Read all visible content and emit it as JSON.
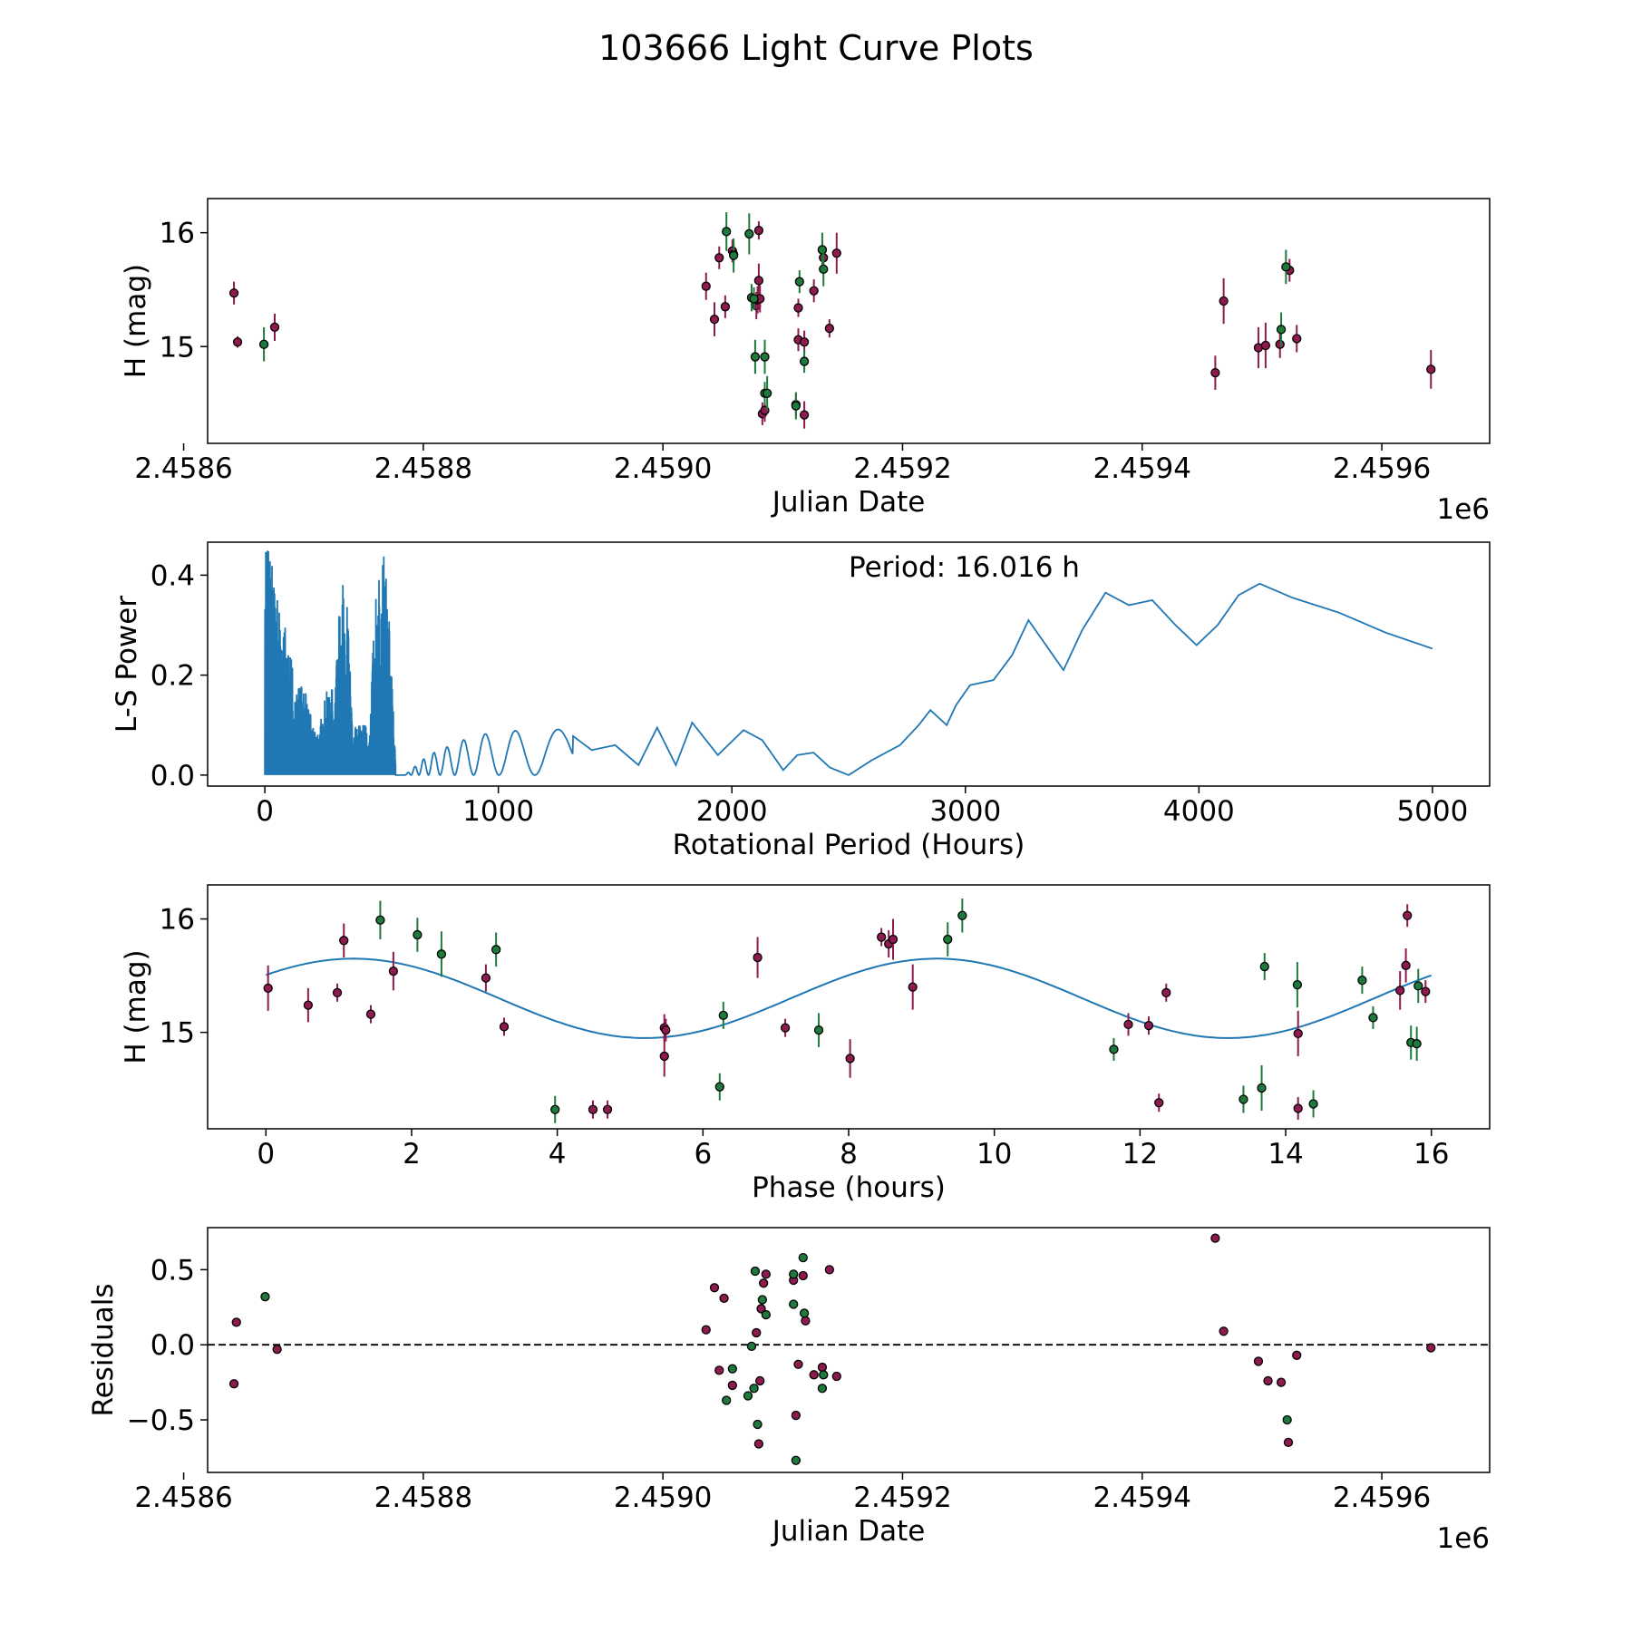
{
  "figure_title": "103666 Light Curve Plots",
  "colors": {
    "g_filter": "#1e7a3c",
    "o_filter": "#8e1a4f",
    "curve": "#1f77b4",
    "marker_edge": "#000000",
    "zero_line": "#000000"
  },
  "chart_data": [
    {
      "id": "raw",
      "type": "scatter",
      "xlabel": "Julian Date",
      "ylabel": "H (mag)",
      "offset_label": "1e6",
      "xlim": [
        2.45862,
        2.45969
      ],
      "ylim": [
        14.15,
        16.3
      ],
      "y_inverted_labels": false,
      "xticks": [
        2.4586,
        2.4588,
        2.459,
        2.4592,
        2.4594,
        2.4596
      ],
      "xtick_labels": [
        "2.4586",
        "2.4588",
        "2.4590",
        "2.4592",
        "2.4594",
        "2.4596"
      ],
      "yticks": [
        15,
        16
      ],
      "ytick_labels": [
        "15",
        "16"
      ],
      "series": [
        {
          "name": "o",
          "color": "o_filter",
          "points": [
            [
              2.458642,
              15.47,
              0.1
            ],
            [
              2.458645,
              15.04,
              0.05
            ],
            [
              2.458676,
              15.17,
              0.12
            ],
            [
              2.459036,
              15.53,
              0.12
            ],
            [
              2.459043,
              15.24,
              0.15
            ],
            [
              2.459047,
              15.78,
              0.1
            ],
            [
              2.459052,
              15.35,
              0.1
            ],
            [
              2.459058,
              15.84,
              0.1
            ],
            [
              2.459059,
              15.81,
              0.1
            ],
            [
              2.459078,
              15.36,
              0.12
            ],
            [
              2.459079,
              15.41,
              0.12
            ],
            [
              2.45908,
              16.02,
              0.08
            ],
            [
              2.45908,
              15.58,
              0.15
            ],
            [
              2.459081,
              15.42,
              0.12
            ],
            [
              2.459083,
              14.41,
              0.1
            ],
            [
              2.459085,
              14.44,
              0.1
            ],
            [
              2.459111,
              14.49,
              0.1
            ],
            [
              2.459113,
              15.34,
              0.08
            ],
            [
              2.459113,
              15.06,
              0.1
            ],
            [
              2.459118,
              14.4,
              0.12
            ],
            [
              2.459118,
              15.04,
              0.1
            ],
            [
              2.459126,
              15.49,
              0.1
            ],
            [
              2.459133,
              15.85,
              0.08
            ],
            [
              2.459134,
              15.78,
              0.08
            ],
            [
              2.459139,
              15.16,
              0.08
            ],
            [
              2.459145,
              15.82,
              0.18
            ],
            [
              2.459461,
              14.77,
              0.15
            ],
            [
              2.459468,
              15.4,
              0.2
            ],
            [
              2.459497,
              14.99,
              0.18
            ],
            [
              2.459503,
              15.01,
              0.2
            ],
            [
              2.459515,
              15.02,
              0.12
            ],
            [
              2.459523,
              15.67,
              0.1
            ],
            [
              2.459529,
              15.07,
              0.12
            ],
            [
              2.459641,
              14.8,
              0.17
            ]
          ]
        },
        {
          "name": "g",
          "color": "g_filter",
          "points": [
            [
              2.458667,
              15.02,
              0.15
            ],
            [
              2.459053,
              16.01,
              0.17
            ],
            [
              2.459059,
              15.8,
              0.15
            ],
            [
              2.459072,
              15.99,
              0.18
            ],
            [
              2.459074,
              15.43,
              0.12
            ],
            [
              2.459076,
              15.42,
              0.1
            ],
            [
              2.459077,
              14.91,
              0.15
            ],
            [
              2.459085,
              14.91,
              0.15
            ],
            [
              2.459085,
              14.59,
              0.1
            ],
            [
              2.459087,
              14.59,
              0.15
            ],
            [
              2.459111,
              14.48,
              0.12
            ],
            [
              2.459114,
              15.57,
              0.1
            ],
            [
              2.459118,
              14.87,
              0.1
            ],
            [
              2.459133,
              15.85,
              0.15
            ],
            [
              2.459134,
              15.68,
              0.15
            ],
            [
              2.459516,
              15.15,
              0.15
            ],
            [
              2.45952,
              15.7,
              0.15
            ]
          ]
        }
      ]
    },
    {
      "id": "periodogram",
      "type": "line",
      "xlabel": "Rotational Period (Hours)",
      "ylabel": "L-S Power",
      "xlim": [
        -245,
        5245
      ],
      "ylim": [
        -0.022,
        0.466
      ],
      "xticks": [
        0,
        1000,
        2000,
        3000,
        4000,
        5000
      ],
      "xtick_labels": [
        "0",
        "1000",
        "2000",
        "3000",
        "4000",
        "5000"
      ],
      "yticks": [
        0.0,
        0.2,
        0.4
      ],
      "ytick_labels": [
        "0.0",
        "0.2",
        "0.4"
      ],
      "annotation": "Period: 16.016 h",
      "smooth_envelope": [
        [
          600,
          0.0
        ],
        [
          700,
          0.04
        ],
        [
          800,
          0.06
        ],
        [
          900,
          0.08
        ],
        [
          1000,
          0.085
        ],
        [
          1100,
          0.09
        ],
        [
          1200,
          0.1
        ],
        [
          1300,
          0.085
        ],
        [
          1400,
          0.05
        ],
        [
          1500,
          0.06
        ],
        [
          1600,
          0.02
        ],
        [
          1680,
          0.095
        ],
        [
          1760,
          0.02
        ],
        [
          1830,
          0.105
        ],
        [
          1940,
          0.04
        ],
        [
          2050,
          0.09
        ],
        [
          2130,
          0.07
        ],
        [
          2220,
          0.01
        ],
        [
          2280,
          0.04
        ],
        [
          2350,
          0.045
        ],
        [
          2420,
          0.015
        ],
        [
          2500,
          0.0
        ],
        [
          2600,
          0.03
        ],
        [
          2720,
          0.06
        ],
        [
          2800,
          0.1
        ],
        [
          2850,
          0.13
        ],
        [
          2920,
          0.1
        ],
        [
          2960,
          0.14
        ],
        [
          3020,
          0.18
        ],
        [
          3120,
          0.19
        ],
        [
          3200,
          0.24
        ],
        [
          3270,
          0.31
        ],
        [
          3330,
          0.27
        ],
        [
          3420,
          0.21
        ],
        [
          3500,
          0.29
        ],
        [
          3600,
          0.365
        ],
        [
          3700,
          0.34
        ],
        [
          3800,
          0.35
        ],
        [
          3900,
          0.3
        ],
        [
          3990,
          0.26
        ],
        [
          4080,
          0.3
        ],
        [
          4170,
          0.36
        ],
        [
          4260,
          0.383
        ],
        [
          4400,
          0.355
        ],
        [
          4600,
          0.325
        ],
        [
          4800,
          0.285
        ],
        [
          5000,
          0.253
        ]
      ],
      "noisy_region_peaks": [
        [
          10,
          0.45
        ],
        [
          60,
          0.43
        ],
        [
          150,
          0.2
        ],
        [
          350,
          0.37
        ],
        [
          500,
          0.43
        ]
      ]
    },
    {
      "id": "phase",
      "type": "scatter",
      "xlabel": "Phase (hours)",
      "ylabel": "H (mag)",
      "xlim": [
        -0.8,
        16.8
      ],
      "ylim": [
        14.15,
        16.3
      ],
      "xticks": [
        0,
        2,
        4,
        6,
        8,
        10,
        12,
        14,
        16
      ],
      "xtick_labels": [
        "0",
        "2",
        "4",
        "6",
        "8",
        "10",
        "12",
        "14",
        "16"
      ],
      "yticks": [
        15,
        16
      ],
      "ytick_labels": [
        "15",
        "16"
      ],
      "model": {
        "mean": 15.3,
        "amplitude": 0.35,
        "period": 8.008,
        "phase0": 1.2
      },
      "series": [
        {
          "name": "o",
          "color": "o_filter",
          "points": [
            [
              0.03,
              15.39,
              0.2
            ],
            [
              0.58,
              15.24,
              0.15
            ],
            [
              0.98,
              15.35,
              0.08
            ],
            [
              1.07,
              15.81,
              0.15
            ],
            [
              1.44,
              15.16,
              0.08
            ],
            [
              1.75,
              15.54,
              0.17
            ],
            [
              3.02,
              15.48,
              0.12
            ],
            [
              3.27,
              15.05,
              0.08
            ],
            [
              4.49,
              14.32,
              0.08
            ],
            [
              4.69,
              14.32,
              0.08
            ],
            [
              5.47,
              14.79,
              0.18
            ],
            [
              5.47,
              15.04,
              0.12
            ],
            [
              5.49,
              15.02,
              0.1
            ],
            [
              6.75,
              15.66,
              0.18
            ],
            [
              7.13,
              15.04,
              0.08
            ],
            [
              8.02,
              14.77,
              0.17
            ],
            [
              8.45,
              15.84,
              0.08
            ],
            [
              8.55,
              15.78,
              0.12
            ],
            [
              8.61,
              15.82,
              0.18
            ],
            [
              8.88,
              15.4,
              0.2
            ],
            [
              11.84,
              15.07,
              0.1
            ],
            [
              12.12,
              15.06,
              0.08
            ],
            [
              12.26,
              14.38,
              0.08
            ],
            [
              12.36,
              15.35,
              0.08
            ],
            [
              14.17,
              14.33,
              0.1
            ],
            [
              14.17,
              14.99,
              0.2
            ],
            [
              15.57,
              15.37,
              0.17
            ],
            [
              15.65,
              15.59,
              0.15
            ],
            [
              15.67,
              16.03,
              0.1
            ],
            [
              15.92,
              15.36,
              0.1
            ]
          ]
        },
        {
          "name": "g",
          "color": "g_filter",
          "points": [
            [
              1.57,
              15.99,
              0.17
            ],
            [
              2.08,
              15.86,
              0.15
            ],
            [
              2.41,
              15.69,
              0.2
            ],
            [
              3.16,
              15.73,
              0.15
            ],
            [
              3.97,
              14.32,
              0.12
            ],
            [
              6.23,
              14.52,
              0.12
            ],
            [
              6.28,
              15.15,
              0.12
            ],
            [
              7.59,
              15.02,
              0.15
            ],
            [
              9.36,
              15.82,
              0.15
            ],
            [
              9.56,
              16.03,
              0.15
            ],
            [
              11.64,
              14.85,
              0.1
            ],
            [
              13.42,
              14.41,
              0.12
            ],
            [
              13.67,
              14.51,
              0.2
            ],
            [
              13.71,
              15.58,
              0.12
            ],
            [
              14.16,
              15.42,
              0.2
            ],
            [
              14.38,
              14.37,
              0.12
            ],
            [
              15.05,
              15.46,
              0.12
            ],
            [
              15.72,
              14.91,
              0.15
            ],
            [
              15.8,
              14.9,
              0.15
            ],
            [
              15.82,
              15.41,
              0.15
            ],
            [
              15.2,
              15.13,
              0.1
            ]
          ]
        }
      ]
    },
    {
      "id": "residuals",
      "type": "scatter",
      "xlabel": "Julian Date",
      "ylabel": "Residuals",
      "offset_label": "1e6",
      "xlim": [
        2.45862,
        2.45969
      ],
      "ylim": [
        -0.85,
        0.78
      ],
      "xticks": [
        2.4586,
        2.4588,
        2.459,
        2.4592,
        2.4594,
        2.4596
      ],
      "xtick_labels": [
        "2.4586",
        "2.4588",
        "2.4590",
        "2.4592",
        "2.4594",
        "2.4596"
      ],
      "yticks": [
        -0.5,
        0.0,
        0.5
      ],
      "ytick_labels": [
        "−0.5",
        "0.0",
        "0.5"
      ],
      "zero_line": 0.0,
      "series": [
        {
          "name": "o",
          "color": "o_filter",
          "points": [
            [
              2.458642,
              -0.26
            ],
            [
              2.458644,
              0.15
            ],
            [
              2.458678,
              -0.03
            ],
            [
              2.459036,
              0.1
            ],
            [
              2.459043,
              0.38
            ],
            [
              2.459047,
              -0.17
            ],
            [
              2.459051,
              0.31
            ],
            [
              2.459058,
              -0.27
            ],
            [
              2.459078,
              0.08
            ],
            [
              2.45908,
              -0.66
            ],
            [
              2.459081,
              -0.24
            ],
            [
              2.459082,
              0.24
            ],
            [
              2.459084,
              0.41
            ],
            [
              2.459086,
              0.47
            ],
            [
              2.459109,
              0.43
            ],
            [
              2.459111,
              -0.47
            ],
            [
              2.459113,
              -0.13
            ],
            [
              2.459117,
              0.46
            ],
            [
              2.459119,
              0.16
            ],
            [
              2.459126,
              -0.2
            ],
            [
              2.459133,
              -0.15
            ],
            [
              2.459139,
              0.5
            ],
            [
              2.459145,
              -0.21
            ],
            [
              2.459461,
              0.71
            ],
            [
              2.459468,
              0.09
            ],
            [
              2.459497,
              -0.11
            ],
            [
              2.459505,
              -0.24
            ],
            [
              2.459516,
              -0.25
            ],
            [
              2.459522,
              -0.65
            ],
            [
              2.459529,
              -0.07
            ],
            [
              2.459641,
              -0.02
            ]
          ]
        },
        {
          "name": "g",
          "color": "g_filter",
          "points": [
            [
              2.458668,
              0.32
            ],
            [
              2.459053,
              -0.37
            ],
            [
              2.459058,
              -0.16
            ],
            [
              2.459071,
              -0.34
            ],
            [
              2.459074,
              -0.01
            ],
            [
              2.459076,
              -0.29
            ],
            [
              2.459077,
              0.49
            ],
            [
              2.459079,
              -0.53
            ],
            [
              2.459083,
              0.3
            ],
            [
              2.459086,
              0.2
            ],
            [
              2.459109,
              0.47
            ],
            [
              2.459109,
              0.27
            ],
            [
              2.459111,
              -0.77
            ],
            [
              2.459117,
              0.58
            ],
            [
              2.459118,
              0.21
            ],
            [
              2.459133,
              -0.29
            ],
            [
              2.459134,
              -0.2
            ],
            [
              2.459521,
              -0.5
            ]
          ]
        }
      ]
    }
  ]
}
